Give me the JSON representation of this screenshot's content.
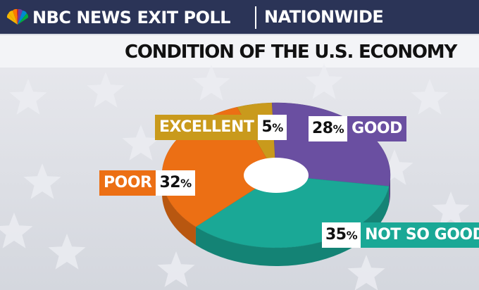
{
  "header": {
    "brand": "NBC NEWS EXIT POLL",
    "region": "NATIONWIDE"
  },
  "colors": {
    "header_bg": "#2b3457",
    "excellent": "#c99a1c",
    "good": "#6a4fa1",
    "not_so_good": "#1aa896",
    "poor": "#ec6f14"
  },
  "chart_data": {
    "type": "pie",
    "style": "donut-3d",
    "title": "CONDITION OF THE U.S. ECONOMY",
    "slices": [
      {
        "label": "EXCELLENT",
        "value": 5,
        "display": "5",
        "color": "#c99a1c"
      },
      {
        "label": "GOOD",
        "value": 28,
        "display": "28",
        "color": "#6a4fa1"
      },
      {
        "label": "NOT SO GOOD",
        "value": 35,
        "display": "35",
        "color": "#1aa896"
      },
      {
        "label": "POOR",
        "value": 32,
        "display": "32",
        "color": "#ec6f14"
      }
    ],
    "unit": "%"
  }
}
